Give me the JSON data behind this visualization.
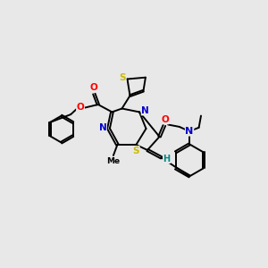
{
  "bg_color": "#e8e8e8",
  "bond_color": "#000000",
  "bond_width": 1.4,
  "atom_colors": {
    "N": "#0000cc",
    "O": "#ff0000",
    "S": "#ccbb00",
    "H": "#008888",
    "C": "#000000"
  },
  "figsize": [
    3.0,
    3.0
  ],
  "dpi": 100,
  "xlim": [
    0,
    10
  ],
  "ylim": [
    0,
    10
  ]
}
